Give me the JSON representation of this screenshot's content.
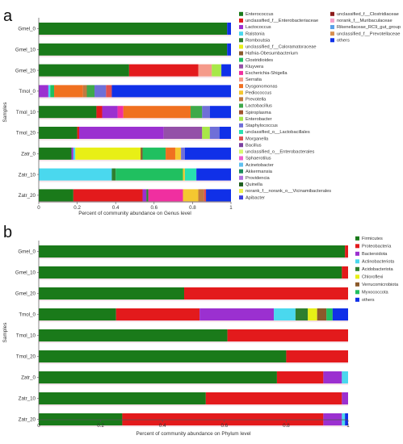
{
  "chart_data": [
    {
      "type": "bar",
      "orientation": "horizontal",
      "stacked": true,
      "panel_label": "a",
      "xlabel": "Percent of community abundance on Genus level",
      "ylabel": "Samples",
      "xlim": [
        0,
        1
      ],
      "xticks": [
        "0",
        "0.2",
        "0.4",
        "0.6",
        "0.8",
        "1"
      ],
      "legend_placement": "right",
      "categories": [
        "Gmel_0",
        "Gmel_10",
        "Gmel_20",
        "Tmol_0",
        "Tmol_10",
        "Tmol_20",
        "Zatr_0",
        "Zatr_10",
        "Zatr_20"
      ],
      "series": [
        {
          "name": "Enterococcus",
          "color": "#1a7a1a",
          "values": [
            0.98,
            0.98,
            0.47,
            0.0,
            0.3,
            0.2,
            0.17,
            0.0,
            0.18
          ]
        },
        {
          "name": "unclassified_f__Enterobacteriaceae",
          "color": "#e31a1c",
          "values": [
            0.0,
            0.0,
            0.36,
            0.0,
            0.03,
            0.01,
            0.0,
            0.0,
            0.36
          ]
        },
        {
          "name": "Lactococcus",
          "color": "#9b30d0",
          "values": [
            0.0,
            0.0,
            0.0,
            0.05,
            0.08,
            0.44,
            0.01,
            0.0,
            0.02
          ]
        },
        {
          "name": "Ralstonia",
          "color": "#4ad8ee",
          "values": [
            0.0,
            0.0,
            0.0,
            0.01,
            0.0,
            0.0,
            0.01,
            0.38,
            0.0
          ]
        },
        {
          "name": "Romboutsia",
          "color": "#2f7f2f",
          "values": [
            0.0,
            0.0,
            0.0,
            0.0,
            0.0,
            0.0,
            0.0,
            0.02,
            0.01
          ]
        },
        {
          "name": "unclassified_f__Caloramatoraceae",
          "color": "#e8ef16",
          "values": [
            0.0,
            0.0,
            0.0,
            0.0,
            0.0,
            0.0,
            0.34,
            0.0,
            0.0
          ]
        },
        {
          "name": "Hafnia-Obesumbacterium",
          "color": "#8b5a2b",
          "values": [
            0.0,
            0.0,
            0.0,
            0.0,
            0.0,
            0.0,
            0.01,
            0.0,
            0.0
          ]
        },
        {
          "name": "Clostridioides",
          "color": "#20c060",
          "values": [
            0.0,
            0.0,
            0.0,
            0.02,
            0.0,
            0.0,
            0.12,
            0.35,
            0.0
          ]
        },
        {
          "name": "Kluyvera",
          "color": "#9450a8",
          "values": [
            0.0,
            0.0,
            0.0,
            0.0,
            0.0,
            0.2,
            0.0,
            0.0,
            0.0
          ]
        },
        {
          "name": "Escherichia-Shigella",
          "color": "#f02fa0",
          "values": [
            0.0,
            0.0,
            0.0,
            0.0,
            0.03,
            0.0,
            0.0,
            0.0,
            0.18
          ]
        },
        {
          "name": "Serratia",
          "color": "#f59a8a",
          "values": [
            0.0,
            0.0,
            0.07,
            0.0,
            0.0,
            0.0,
            0.0,
            0.0,
            0.0
          ]
        },
        {
          "name": "Dysgonomonas",
          "color": "#f07020",
          "values": [
            0.0,
            0.0,
            0.0,
            0.15,
            0.35,
            0.0,
            0.05,
            0.0,
            0.0
          ]
        },
        {
          "name": "Pediococcus",
          "color": "#f5c730",
          "values": [
            0.0,
            0.0,
            0.0,
            0.0,
            0.0,
            0.0,
            0.03,
            0.01,
            0.08
          ]
        },
        {
          "name": "Prevotella",
          "color": "#c07a40",
          "values": [
            0.0,
            0.0,
            0.0,
            0.02,
            0.0,
            0.0,
            0.0,
            0.0,
            0.03
          ]
        },
        {
          "name": "Lactobacillus",
          "color": "#3ea94a",
          "values": [
            0.0,
            0.0,
            0.0,
            0.04,
            0.06,
            0.0,
            0.0,
            0.0,
            0.0
          ]
        },
        {
          "name": "Spiroplasma",
          "color": "#a0522d",
          "values": [
            0.0,
            0.0,
            0.0,
            0.0,
            0.0,
            0.0,
            0.0,
            0.0,
            0.0
          ]
        },
        {
          "name": "Enterobacter",
          "color": "#a8e848",
          "values": [
            0.0,
            0.0,
            0.05,
            0.0,
            0.0,
            0.04,
            0.0,
            0.0,
            0.0
          ]
        },
        {
          "name": "Staphylococcus",
          "color": "#6f6fd8",
          "values": [
            0.0,
            0.0,
            0.0,
            0.06,
            0.04,
            0.05,
            0.02,
            0.0,
            0.0
          ]
        },
        {
          "name": "unclassified_o__Lactobacillales",
          "color": "#28e0b0",
          "values": [
            0.0,
            0.0,
            0.0,
            0.0,
            0.0,
            0.0,
            0.0,
            0.06,
            0.0
          ]
        },
        {
          "name": "Morganella",
          "color": "#e05050",
          "values": [
            0.0,
            0.0,
            0.0,
            0.03,
            0.0,
            0.0,
            0.0,
            0.0,
            0.01
          ]
        },
        {
          "name": "Bacillus",
          "color": "#7b3fa0",
          "values": [
            0.0,
            0.0,
            0.0,
            0.0,
            0.0,
            0.0,
            0.0,
            0.0,
            0.0
          ]
        },
        {
          "name": "unclassified_o__Enterobacterales",
          "color": "#d8f870",
          "values": [
            0.0,
            0.0,
            0.0,
            0.0,
            0.0,
            0.0,
            0.0,
            0.0,
            0.0
          ]
        },
        {
          "name": "Sphaerotilus",
          "color": "#f060d0",
          "values": [
            0.0,
            0.0,
            0.0,
            0.0,
            0.0,
            0.0,
            0.0,
            0.0,
            0.0
          ]
        },
        {
          "name": "Acinetobacter",
          "color": "#60c0f0",
          "values": [
            0.0,
            0.0,
            0.0,
            0.0,
            0.0,
            0.0,
            0.0,
            0.0,
            0.0
          ]
        },
        {
          "name": "Akkermansia",
          "color": "#1a8a5a",
          "values": [
            0.0,
            0.0,
            0.0,
            0.0,
            0.0,
            0.0,
            0.0,
            0.0,
            0.0
          ]
        },
        {
          "name": "Providencia",
          "color": "#b070e0",
          "values": [
            0.0,
            0.0,
            0.0,
            0.0,
            0.0,
            0.0,
            0.0,
            0.0,
            0.0
          ]
        },
        {
          "name": "Quinella",
          "color": "#1f5f1f",
          "values": [
            0.0,
            0.0,
            0.0,
            0.0,
            0.0,
            0.0,
            0.0,
            0.0,
            0.0
          ]
        },
        {
          "name": "norank_f__norank_o__Vicinamibacterales",
          "color": "#eef050",
          "values": [
            0.0,
            0.0,
            0.0,
            0.0,
            0.0,
            0.0,
            0.0,
            0.0,
            0.0
          ]
        },
        {
          "name": "Apibacter",
          "color": "#4040e0",
          "values": [
            0.0,
            0.0,
            0.0,
            0.0,
            0.0,
            0.0,
            0.0,
            0.0,
            0.0
          ]
        },
        {
          "name": "unclassified_f__Clostridiaceae",
          "color": "#8b1a1a",
          "values": [
            0.0,
            0.0,
            0.0,
            0.0,
            0.0,
            0.0,
            0.0,
            0.0,
            0.0
          ]
        },
        {
          "name": "norank_f__Muribaculaceae",
          "color": "#f5a0c8",
          "values": [
            0.0,
            0.0,
            0.0,
            0.0,
            0.0,
            0.0,
            0.0,
            0.0,
            0.0
          ]
        },
        {
          "name": "Rikenellaceae_RC9_gut_group",
          "color": "#5aa0e8",
          "values": [
            0.0,
            0.0,
            0.0,
            0.0,
            0.0,
            0.0,
            0.0,
            0.0,
            0.0
          ]
        },
        {
          "name": "unclassified_f__Prevotellaceae",
          "color": "#d89050",
          "values": [
            0.0,
            0.0,
            0.0,
            0.0,
            0.0,
            0.0,
            0.0,
            0.0,
            0.0
          ]
        },
        {
          "name": "others",
          "color": "#1030e8",
          "values": [
            0.02,
            0.02,
            0.05,
            0.62,
            0.11,
            0.06,
            0.24,
            0.18,
            0.13
          ]
        }
      ]
    },
    {
      "type": "bar",
      "orientation": "horizontal",
      "stacked": true,
      "panel_label": "b",
      "xlabel": "Percent of community abundance on Phylum level",
      "ylabel": "Samples",
      "xlim": [
        0,
        1
      ],
      "xticks": [
        "0",
        "0.2",
        "0.4",
        "0.6",
        "0.8",
        "1"
      ],
      "legend_placement": "right",
      "categories": [
        "Gmel_0",
        "Gmel_10",
        "Gmel_20",
        "Tmol_0",
        "Tmol_10",
        "Tmol_20",
        "Zatr_0",
        "Zatr_10",
        "Zatr_20"
      ],
      "series": [
        {
          "name": "Firmicutes",
          "color": "#1a7a1a",
          "values": [
            0.99,
            0.98,
            0.47,
            0.25,
            0.61,
            0.8,
            0.77,
            0.54,
            0.27
          ]
        },
        {
          "name": "Proteobacteria",
          "color": "#e31a1c",
          "values": [
            0.01,
            0.02,
            0.53,
            0.27,
            0.39,
            0.2,
            0.15,
            0.44,
            0.65
          ]
        },
        {
          "name": "Bacteroidota",
          "color": "#9b30d0",
          "values": [
            0.0,
            0.0,
            0.0,
            0.24,
            0.0,
            0.0,
            0.06,
            0.02,
            0.06
          ]
        },
        {
          "name": "Actinobacteriota",
          "color": "#4ad8ee",
          "values": [
            0.0,
            0.0,
            0.0,
            0.07,
            0.0,
            0.0,
            0.02,
            0.0,
            0.01
          ]
        },
        {
          "name": "Acidobacteriota",
          "color": "#2f7f2f",
          "values": [
            0.0,
            0.0,
            0.0,
            0.04,
            0.0,
            0.0,
            0.0,
            0.0,
            0.0
          ]
        },
        {
          "name": "Chloroflexi",
          "color": "#e8ef16",
          "values": [
            0.0,
            0.0,
            0.0,
            0.03,
            0.0,
            0.0,
            0.0,
            0.0,
            0.0
          ]
        },
        {
          "name": "Verrucomicrobiota",
          "color": "#8b5a2b",
          "values": [
            0.0,
            0.0,
            0.0,
            0.03,
            0.0,
            0.0,
            0.0,
            0.0,
            0.0
          ]
        },
        {
          "name": "Myxococcota",
          "color": "#20c060",
          "values": [
            0.0,
            0.0,
            0.0,
            0.02,
            0.0,
            0.0,
            0.0,
            0.0,
            0.0
          ]
        },
        {
          "name": "others",
          "color": "#1030e8",
          "values": [
            0.0,
            0.0,
            0.0,
            0.05,
            0.0,
            0.0,
            0.0,
            0.0,
            0.01
          ]
        }
      ]
    }
  ]
}
